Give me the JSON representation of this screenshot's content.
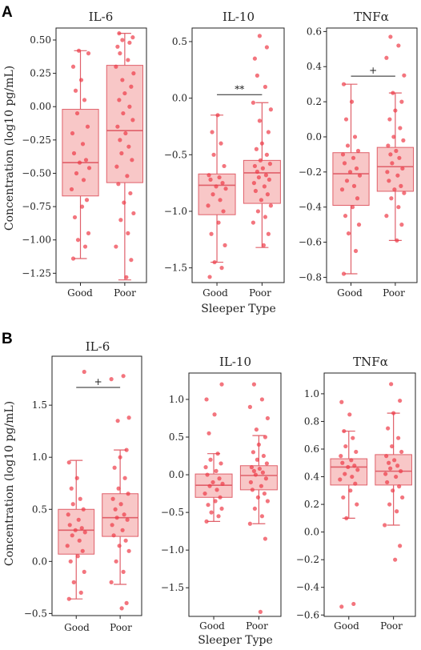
{
  "figure": {
    "panels": [
      {
        "letter": "A",
        "ylabel": "Concentration (log10 pg/mL)",
        "xlabel": "Sleeper Type",
        "subplots": [
          {
            "title": "IL-6",
            "ylim": [
              -1.32,
              0.59
            ],
            "yticks": [
              0.5,
              0.25,
              0.0,
              -0.25,
              -0.5,
              -0.75,
              -1.0,
              -1.25
            ],
            "ytick_labels": [
              "0.50",
              "0.25",
              "0.00",
              "−0.25",
              "−0.50",
              "−0.75",
              "−1.00",
              "−1.25"
            ],
            "categories": [
              "Good",
              "Poor"
            ],
            "boxes": [
              {
                "whislo": -1.14,
                "q1": -0.67,
                "med": -0.42,
                "q3": -0.02,
                "whishi": 0.42
              },
              {
                "whislo": -1.3,
                "q1": -0.57,
                "med": -0.18,
                "q3": 0.31,
                "whishi": 0.55
              }
            ],
            "points": [
              [
                -1.14,
                -1.05,
                -1.0,
                -0.95,
                -0.83,
                -0.75,
                -0.7,
                -0.62,
                -0.55,
                -0.5,
                -0.46,
                -0.42,
                -0.4,
                -0.35,
                -0.28,
                -0.2,
                -0.15,
                -0.05,
                0.05,
                0.12,
                0.2,
                0.3,
                0.4,
                0.42
              ],
              [
                -1.28,
                -1.15,
                -1.05,
                -0.95,
                -0.85,
                -0.8,
                -0.72,
                -0.65,
                -0.58,
                -0.52,
                -0.45,
                -0.4,
                -0.35,
                -0.3,
                -0.25,
                -0.2,
                -0.15,
                -0.1,
                -0.05,
                0.0,
                0.05,
                0.1,
                0.15,
                0.2,
                0.25,
                0.3,
                0.35,
                0.4,
                0.45,
                0.48,
                0.5,
                0.52,
                0.55
              ]
            ],
            "annotation": ""
          },
          {
            "title": "IL-10",
            "ylim": [
              -1.63,
              0.62
            ],
            "yticks": [
              0.5,
              0.0,
              -0.5,
              -1.0,
              -1.5
            ],
            "ytick_labels": [
              "0.5",
              "0.0",
              "−0.5",
              "−1.0",
              "−1.5"
            ],
            "categories": [
              "Good",
              "Poor"
            ],
            "boxes": [
              {
                "whislo": -1.45,
                "q1": -1.03,
                "med": -0.77,
                "q3": -0.67,
                "whishi": -0.15
              },
              {
                "whislo": -1.32,
                "q1": -0.93,
                "med": -0.66,
                "q3": -0.55,
                "whishi": -0.04
              }
            ],
            "points": [
              [
                -1.58,
                -1.5,
                -1.45,
                -1.3,
                -1.2,
                -1.1,
                -1.0,
                -0.95,
                -0.9,
                -0.85,
                -0.8,
                -0.78,
                -0.75,
                -0.72,
                -0.7,
                -0.68,
                -0.6,
                -0.5,
                -0.4,
                -0.3,
                -0.15
              ],
              [
                -1.3,
                -1.2,
                -1.1,
                -1.05,
                -1.0,
                -0.95,
                -0.9,
                -0.85,
                -0.82,
                -0.78,
                -0.75,
                -0.72,
                -0.7,
                -0.68,
                -0.65,
                -0.62,
                -0.6,
                -0.58,
                -0.55,
                -0.5,
                -0.45,
                -0.4,
                -0.3,
                -0.2,
                -0.1,
                -0.04,
                0.1,
                0.2,
                0.35,
                0.45,
                0.55
              ]
            ],
            "annotation": "**"
          },
          {
            "title": "TNFα",
            "ylim": [
              -0.83,
              0.62
            ],
            "yticks": [
              0.6,
              0.4,
              0.2,
              0.0,
              -0.2,
              -0.4,
              -0.6,
              -0.8
            ],
            "ytick_labels": [
              "0.6",
              "0.4",
              "0.2",
              "0.0",
              "−0.2",
              "−0.4",
              "−0.6",
              "−0.8"
            ],
            "categories": [
              "Good",
              "Poor"
            ],
            "boxes": [
              {
                "whislo": -0.78,
                "q1": -0.39,
                "med": -0.21,
                "q3": -0.09,
                "whishi": 0.3
              },
              {
                "whislo": -0.59,
                "q1": -0.31,
                "med": -0.17,
                "q3": -0.06,
                "whishi": 0.25
              }
            ],
            "points": [
              [
                -0.78,
                -0.65,
                -0.55,
                -0.5,
                -0.45,
                -0.4,
                -0.35,
                -0.3,
                -0.28,
                -0.25,
                -0.22,
                -0.2,
                -0.18,
                -0.15,
                -0.12,
                -0.1,
                -0.08,
                -0.05,
                0.0,
                0.1,
                0.2,
                0.3
              ],
              [
                -0.59,
                -0.5,
                -0.45,
                -0.4,
                -0.35,
                -0.32,
                -0.3,
                -0.28,
                -0.25,
                -0.22,
                -0.2,
                -0.18,
                -0.15,
                -0.12,
                -0.1,
                -0.08,
                -0.05,
                -0.02,
                0.0,
                0.05,
                0.1,
                0.15,
                0.2,
                0.25,
                0.35,
                0.45,
                0.52,
                0.57
              ]
            ],
            "annotation": "+"
          }
        ]
      },
      {
        "letter": "B",
        "ylabel": "Concentration (log10 pg/mL)",
        "xlabel": "Sleeper Type",
        "subplots": [
          {
            "title": "IL-6",
            "ylim": [
              -0.52,
              1.97
            ],
            "yticks": [
              1.5,
              1.0,
              0.5,
              0.0,
              -0.5
            ],
            "ytick_labels": [
              "1.5",
              "1.0",
              "0.5",
              "0.0",
              "−0.5"
            ],
            "categories": [
              "Good",
              "Poor"
            ],
            "boxes": [
              {
                "whislo": -0.36,
                "q1": 0.07,
                "med": 0.3,
                "q3": 0.5,
                "whishi": 0.97
              },
              {
                "whislo": -0.22,
                "q1": 0.24,
                "med": 0.42,
                "q3": 0.65,
                "whishi": 1.07
              }
            ],
            "points": [
              [
                -0.36,
                -0.3,
                -0.2,
                -0.1,
                0.0,
                0.05,
                0.1,
                0.15,
                0.2,
                0.25,
                0.28,
                0.3,
                0.32,
                0.35,
                0.4,
                0.45,
                0.5,
                0.55,
                0.6,
                0.7,
                0.8,
                0.95,
                1.82
              ],
              [
                -0.45,
                -0.4,
                -0.2,
                -0.1,
                0.0,
                0.1,
                0.15,
                0.2,
                0.25,
                0.3,
                0.35,
                0.4,
                0.42,
                0.45,
                0.5,
                0.55,
                0.6,
                0.65,
                0.7,
                0.8,
                0.9,
                1.0,
                1.07,
                1.35,
                1.38,
                1.75,
                1.78
              ]
            ],
            "annotation": "+"
          },
          {
            "title": "IL-10",
            "ylim": [
              -1.88,
              1.35
            ],
            "yticks": [
              1.0,
              0.5,
              0.0,
              -0.5,
              -1.0,
              -1.5
            ],
            "ytick_labels": [
              "1.0",
              "0.5",
              "0.0",
              "−0.5",
              "−1.0",
              "−1.5"
            ],
            "categories": [
              "Good",
              "Poor"
            ],
            "boxes": [
              {
                "whislo": -0.62,
                "q1": -0.3,
                "med": -0.14,
                "q3": 0.01,
                "whishi": 0.28
              },
              {
                "whislo": -0.65,
                "q1": -0.2,
                "med": -0.01,
                "q3": 0.12,
                "whishi": 0.52
              }
            ],
            "points": [
              [
                -0.62,
                -0.55,
                -0.5,
                -0.45,
                -0.4,
                -0.35,
                -0.3,
                -0.25,
                -0.2,
                -0.15,
                -0.12,
                -0.1,
                -0.05,
                0.0,
                0.05,
                0.1,
                0.15,
                0.2,
                0.28,
                0.55,
                0.8,
                1.0,
                1.2
              ],
              [
                -1.82,
                -0.85,
                -0.65,
                -0.55,
                -0.45,
                -0.35,
                -0.3,
                -0.25,
                -0.2,
                -0.15,
                -0.1,
                -0.05,
                0.0,
                0.03,
                0.05,
                0.08,
                0.1,
                0.15,
                0.2,
                0.25,
                0.3,
                0.4,
                0.5,
                0.6,
                0.75,
                0.9,
                1.0,
                1.2
              ]
            ],
            "annotation": ""
          },
          {
            "title": "TNFα",
            "ylim": [
              -0.61,
              1.15
            ],
            "yticks": [
              1.0,
              0.8,
              0.6,
              0.4,
              0.2,
              0.0,
              -0.2,
              -0.4,
              -0.6
            ],
            "ytick_labels": [
              "1.0",
              "0.8",
              "0.6",
              "0.4",
              "0.2",
              "0.0",
              "−0.2",
              "−0.4",
              "−0.6"
            ],
            "categories": [
              "Good",
              "Poor"
            ],
            "boxes": [
              {
                "whislo": 0.1,
                "q1": 0.34,
                "med": 0.47,
                "q3": 0.53,
                "whishi": 0.73
              },
              {
                "whislo": 0.05,
                "q1": 0.34,
                "med": 0.44,
                "q3": 0.56,
                "whishi": 0.86
              }
            ],
            "points": [
              [
                -0.54,
                -0.52,
                0.1,
                0.2,
                0.25,
                0.3,
                0.35,
                0.38,
                0.4,
                0.42,
                0.45,
                0.47,
                0.48,
                0.5,
                0.52,
                0.55,
                0.58,
                0.62,
                0.68,
                0.73,
                0.85,
                0.94
              ],
              [
                -0.2,
                -0.1,
                0.05,
                0.15,
                0.2,
                0.25,
                0.3,
                0.33,
                0.36,
                0.4,
                0.42,
                0.44,
                0.46,
                0.48,
                0.5,
                0.52,
                0.55,
                0.58,
                0.62,
                0.68,
                0.75,
                0.86,
                0.95,
                1.07
              ]
            ],
            "annotation": ""
          }
        ]
      }
    ]
  },
  "chart_data": [
    {
      "type": "box",
      "panel": "A",
      "title": "IL-6",
      "categories": [
        "Good",
        "Poor"
      ],
      "ylabel": "Concentration (log10 pg/mL)",
      "ylim": [
        -1.32,
        0.59
      ],
      "series": [
        {
          "name": "Good",
          "median": -0.42,
          "q1": -0.67,
          "q3": -0.02,
          "whislo": -1.14,
          "whishi": 0.42
        },
        {
          "name": "Poor",
          "median": -0.18,
          "q1": -0.57,
          "q3": 0.31,
          "whislo": -1.3,
          "whishi": 0.55
        }
      ]
    },
    {
      "type": "box",
      "panel": "A",
      "title": "IL-10",
      "categories": [
        "Good",
        "Poor"
      ],
      "ylim": [
        -1.63,
        0.62
      ],
      "annotation": "**",
      "series": [
        {
          "name": "Good",
          "median": -0.77,
          "q1": -1.03,
          "q3": -0.67,
          "whislo": -1.45,
          "whishi": -0.15
        },
        {
          "name": "Poor",
          "median": -0.66,
          "q1": -0.93,
          "q3": -0.55,
          "whislo": -1.32,
          "whishi": -0.04
        }
      ]
    },
    {
      "type": "box",
      "panel": "A",
      "title": "TNFα",
      "categories": [
        "Good",
        "Poor"
      ],
      "ylim": [
        -0.83,
        0.62
      ],
      "annotation": "+",
      "series": [
        {
          "name": "Good",
          "median": -0.21,
          "q1": -0.39,
          "q3": -0.09,
          "whislo": -0.78,
          "whishi": 0.3
        },
        {
          "name": "Poor",
          "median": -0.17,
          "q1": -0.31,
          "q3": -0.06,
          "whislo": -0.59,
          "whishi": 0.25
        }
      ]
    },
    {
      "type": "box",
      "panel": "B",
      "title": "IL-6",
      "categories": [
        "Good",
        "Poor"
      ],
      "ylabel": "Concentration (log10 pg/mL)",
      "ylim": [
        -0.52,
        1.97
      ],
      "annotation": "+",
      "series": [
        {
          "name": "Good",
          "median": 0.3,
          "q1": 0.07,
          "q3": 0.5,
          "whislo": -0.36,
          "whishi": 0.97
        },
        {
          "name": "Poor",
          "median": 0.42,
          "q1": 0.24,
          "q3": 0.65,
          "whislo": -0.22,
          "whishi": 1.07
        }
      ]
    },
    {
      "type": "box",
      "panel": "B",
      "title": "IL-10",
      "categories": [
        "Good",
        "Poor"
      ],
      "ylim": [
        -1.88,
        1.35
      ],
      "series": [
        {
          "name": "Good",
          "median": -0.14,
          "q1": -0.3,
          "q3": 0.01,
          "whislo": -0.62,
          "whishi": 0.28
        },
        {
          "name": "Poor",
          "median": -0.01,
          "q1": -0.2,
          "q3": 0.12,
          "whislo": -0.65,
          "whishi": 0.52
        }
      ]
    },
    {
      "type": "box",
      "panel": "B",
      "title": "TNFα",
      "categories": [
        "Good",
        "Poor"
      ],
      "ylim": [
        -0.61,
        1.15
      ],
      "series": [
        {
          "name": "Good",
          "median": 0.47,
          "q1": 0.34,
          "q3": 0.53,
          "whislo": 0.1,
          "whishi": 0.73
        },
        {
          "name": "Poor",
          "median": 0.44,
          "q1": 0.34,
          "q3": 0.56,
          "whislo": 0.05,
          "whishi": 0.86
        }
      ]
    }
  ],
  "colors": {
    "box_fill": "#f8c7c7",
    "box_edge": "#e0606a",
    "point": "#ee3b47",
    "axis": "#222222"
  }
}
